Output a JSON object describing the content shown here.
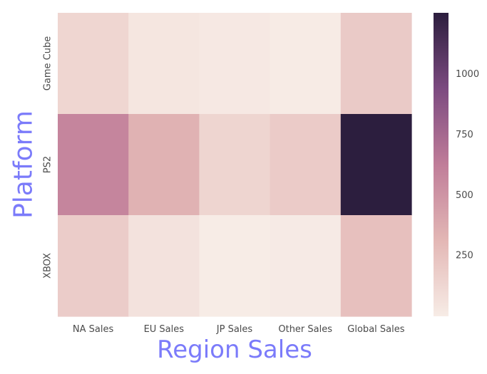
{
  "chart_data": {
    "type": "heatmap",
    "xlabel": "Region Sales",
    "ylabel": "Platform",
    "x_categories": [
      "NA Sales",
      "EU Sales",
      "JP Sales",
      "Other Sales",
      "Global Sales"
    ],
    "y_categories": [
      "Game Cube",
      "PS2",
      "XBOX"
    ],
    "values": [
      [
        133,
        38,
        21,
        5,
        199
      ],
      [
        583,
        339,
        139,
        193,
        1255
      ],
      [
        187,
        60,
        2,
        9,
        258
      ]
    ],
    "colorbar": {
      "min": 0,
      "max": 1255,
      "ticks": [
        250,
        500,
        750,
        1000
      ],
      "colormap": [
        "#f7ece6",
        "#e3b7b5",
        "#c07d99",
        "#7c4a80",
        "#2c1e3e"
      ]
    },
    "label_color": "#7b7bfa",
    "grid": false
  }
}
